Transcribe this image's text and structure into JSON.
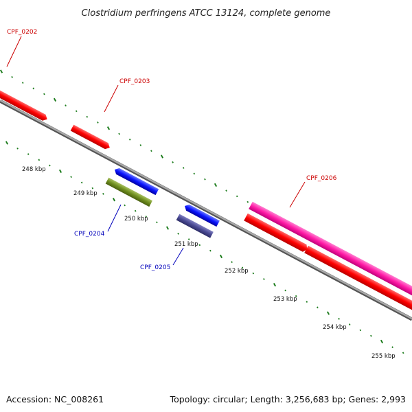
{
  "title": "Clostridium perfringens ATCC 13124, complete genome",
  "footer": {
    "accession": "Accession: NC_008261",
    "summary": "Topology: circular; Length: 3,256,683 bp; Genes: 2,993"
  },
  "colors": {
    "backbone": "#8a8a8a",
    "tick": "#1e7d1e",
    "label_red": "#cc0000",
    "label_blue": "#0000bb",
    "gene_red": "#ff0000",
    "gene_pink": "#ff1aa6",
    "gene_blue": "#0a14ff",
    "gene_olive": "#6f8f1f",
    "gene_slate": "#4a4a94"
  },
  "ticks": [
    {
      "label": "248 kbp"
    },
    {
      "label": "249 kbp"
    },
    {
      "label": "250 kbp"
    },
    {
      "label": "251 kbp"
    },
    {
      "label": "252 kbp"
    },
    {
      "label": "253 kbp"
    },
    {
      "label": "254 kbp"
    },
    {
      "label": "255 kbp"
    }
  ],
  "gene_labels": [
    {
      "name": "CPF_0202",
      "color": "red"
    },
    {
      "name": "CPF_0203",
      "color": "red"
    },
    {
      "name": "CPF_0206",
      "color": "red"
    },
    {
      "name": "CPF_0204",
      "color": "blue"
    },
    {
      "name": "CPF_0205",
      "color": "blue"
    }
  ]
}
